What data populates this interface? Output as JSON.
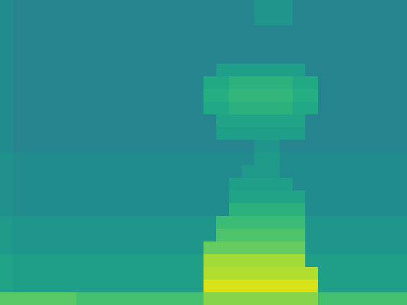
{
  "chart_data": {
    "type": "heatmap",
    "tick_labels": false,
    "color_range": [
      0,
      10
    ],
    "cells": [
      [
        4.8,
        4.5,
        4.5,
        4.5,
        4.5,
        4.5,
        4.5,
        4.5,
        4.5,
        4.5,
        4.5,
        4.5,
        4.5,
        4.5,
        4.5,
        4.5,
        4.5,
        4.5,
        4.5,
        4.5,
        5.2,
        5.2,
        5.2,
        4.5,
        4.5,
        4.5,
        4.5,
        4.5,
        4.5,
        4.5,
        4.5,
        4.5
      ],
      [
        4.8,
        4.5,
        4.5,
        4.5,
        4.5,
        4.5,
        4.5,
        4.5,
        4.5,
        4.5,
        4.5,
        4.5,
        4.5,
        4.5,
        4.5,
        4.5,
        4.5,
        4.5,
        4.5,
        4.5,
        5.2,
        5.2,
        5.2,
        4.5,
        4.5,
        4.5,
        4.5,
        4.5,
        4.5,
        4.5,
        4.5,
        4.5
      ],
      [
        4.8,
        4.5,
        4.5,
        4.5,
        4.5,
        4.5,
        4.5,
        4.5,
        4.5,
        4.5,
        4.5,
        4.5,
        4.5,
        4.5,
        4.5,
        4.5,
        4.5,
        4.5,
        4.5,
        4.5,
        4.5,
        4.5,
        4.5,
        4.5,
        4.5,
        4.5,
        4.5,
        4.5,
        4.5,
        4.5,
        4.5,
        4.5
      ],
      [
        4.8,
        4.5,
        4.5,
        4.5,
        4.5,
        4.5,
        4.5,
        4.5,
        4.5,
        4.5,
        4.5,
        4.5,
        4.5,
        4.5,
        4.5,
        4.5,
        4.5,
        4.5,
        4.5,
        4.5,
        4.5,
        4.5,
        4.5,
        4.5,
        4.5,
        4.5,
        4.5,
        4.5,
        4.5,
        4.5,
        4.5,
        4.5
      ],
      [
        4.8,
        4.5,
        4.5,
        4.5,
        4.5,
        4.5,
        4.5,
        4.5,
        4.5,
        4.5,
        4.5,
        4.5,
        4.5,
        4.5,
        4.5,
        4.5,
        4.5,
        4.5,
        4.5,
        4.5,
        4.5,
        4.5,
        4.5,
        4.5,
        4.5,
        4.5,
        4.5,
        4.5,
        4.5,
        4.5,
        4.5,
        4.5
      ],
      [
        4.8,
        4.5,
        4.5,
        4.5,
        4.5,
        4.5,
        4.5,
        4.5,
        4.5,
        4.5,
        4.5,
        4.5,
        4.5,
        4.5,
        4.5,
        4.5,
        4.5,
        5.6,
        5.6,
        5.6,
        5.6,
        5.6,
        5.6,
        5.6,
        4.5,
        4.5,
        4.5,
        4.5,
        4.5,
        4.5,
        4.5,
        4.5
      ],
      [
        4.8,
        4.5,
        4.5,
        4.5,
        4.5,
        4.5,
        4.5,
        4.5,
        4.5,
        4.5,
        4.5,
        4.5,
        4.5,
        4.5,
        4.5,
        4.5,
        6.0,
        6.0,
        6.4,
        6.4,
        6.4,
        6.4,
        6.4,
        6.0,
        6.0,
        4.5,
        4.5,
        4.5,
        4.5,
        4.5,
        4.5,
        4.5
      ],
      [
        4.8,
        4.5,
        4.5,
        4.5,
        4.5,
        4.5,
        4.5,
        4.5,
        4.5,
        4.5,
        4.5,
        4.5,
        4.5,
        4.5,
        4.5,
        4.5,
        6.2,
        6.2,
        6.6,
        6.6,
        6.6,
        6.6,
        6.6,
        6.2,
        6.2,
        4.5,
        4.5,
        4.5,
        4.5,
        4.5,
        4.5,
        4.5
      ],
      [
        4.8,
        4.5,
        4.5,
        4.5,
        4.5,
        4.5,
        4.5,
        4.5,
        4.5,
        4.5,
        4.5,
        4.5,
        4.5,
        4.5,
        4.5,
        4.5,
        6.0,
        6.0,
        6.4,
        6.4,
        6.4,
        6.4,
        6.4,
        6.0,
        6.0,
        4.5,
        4.5,
        4.5,
        4.5,
        4.5,
        4.5,
        4.5
      ],
      [
        4.8,
        4.5,
        4.5,
        4.5,
        4.5,
        4.5,
        4.5,
        4.5,
        4.5,
        4.5,
        4.5,
        4.5,
        4.5,
        4.5,
        4.5,
        4.5,
        4.5,
        5.8,
        5.8,
        5.8,
        5.8,
        5.8,
        5.8,
        5.8,
        4.5,
        4.5,
        4.5,
        4.5,
        4.5,
        4.5,
        4.5,
        4.5
      ],
      [
        4.8,
        4.5,
        4.5,
        4.5,
        4.5,
        4.5,
        4.5,
        4.5,
        4.5,
        4.5,
        4.5,
        4.5,
        4.5,
        4.5,
        4.5,
        4.5,
        4.5,
        5.6,
        5.6,
        5.6,
        5.6,
        5.6,
        5.6,
        5.6,
        4.5,
        4.5,
        4.5,
        4.5,
        4.5,
        4.5,
        4.5,
        4.5
      ],
      [
        4.8,
        4.5,
        4.5,
        4.5,
        4.5,
        4.5,
        4.5,
        4.5,
        4.5,
        4.5,
        4.5,
        4.5,
        4.5,
        4.5,
        4.5,
        4.5,
        4.5,
        4.5,
        4.5,
        4.5,
        5.2,
        5.2,
        4.5,
        4.5,
        4.5,
        4.5,
        4.5,
        4.5,
        4.5,
        4.5,
        4.5,
        4.5
      ],
      [
        5.0,
        4.8,
        4.8,
        4.8,
        4.8,
        4.8,
        4.8,
        4.8,
        4.8,
        4.8,
        4.8,
        4.8,
        4.8,
        4.8,
        4.8,
        4.8,
        4.8,
        4.8,
        4.8,
        4.8,
        5.4,
        5.4,
        4.8,
        4.8,
        4.8,
        4.8,
        4.8,
        4.8,
        4.8,
        4.8,
        4.8,
        4.8
      ],
      [
        5.0,
        4.8,
        4.8,
        4.8,
        4.8,
        4.8,
        4.8,
        4.8,
        4.8,
        4.8,
        4.8,
        4.8,
        4.8,
        4.8,
        4.8,
        4.8,
        4.8,
        4.8,
        4.8,
        5.4,
        5.4,
        5.4,
        4.8,
        4.8,
        4.8,
        4.8,
        4.8,
        4.8,
        4.8,
        4.8,
        4.8,
        4.8
      ],
      [
        5.0,
        4.8,
        4.8,
        4.8,
        4.8,
        4.8,
        4.8,
        4.8,
        4.8,
        4.8,
        4.8,
        4.8,
        4.8,
        4.8,
        4.8,
        4.8,
        4.8,
        4.8,
        5.6,
        5.6,
        5.6,
        5.6,
        5.6,
        4.8,
        4.8,
        4.8,
        4.8,
        4.8,
        4.8,
        4.8,
        4.8,
        4.8
      ],
      [
        5.0,
        4.8,
        4.8,
        4.8,
        4.8,
        4.8,
        4.8,
        4.8,
        4.8,
        4.8,
        4.8,
        4.8,
        4.8,
        4.8,
        4.8,
        4.8,
        4.8,
        4.8,
        5.8,
        5.8,
        5.8,
        5.8,
        5.8,
        5.8,
        4.8,
        4.8,
        4.8,
        4.8,
        4.8,
        4.8,
        4.8,
        4.8
      ],
      [
        5.0,
        4.8,
        4.8,
        4.8,
        4.8,
        4.8,
        4.8,
        4.8,
        4.8,
        4.8,
        4.8,
        4.8,
        4.8,
        4.8,
        4.8,
        4.8,
        4.8,
        4.8,
        6.4,
        6.4,
        6.4,
        6.4,
        6.4,
        6.4,
        4.8,
        4.8,
        4.8,
        4.8,
        4.8,
        4.8,
        4.8,
        4.8
      ],
      [
        5.4,
        5.2,
        5.2,
        5.2,
        5.2,
        5.2,
        5.2,
        5.2,
        5.2,
        5.2,
        5.2,
        5.2,
        5.2,
        5.2,
        5.2,
        5.2,
        5.2,
        6.8,
        6.8,
        6.8,
        6.8,
        6.8,
        6.8,
        6.8,
        5.2,
        5.2,
        5.2,
        5.2,
        5.2,
        5.2,
        5.2,
        5.2
      ],
      [
        5.4,
        5.2,
        5.2,
        5.2,
        5.2,
        5.2,
        5.2,
        5.2,
        5.2,
        5.2,
        5.2,
        5.2,
        5.2,
        5.2,
        5.2,
        5.2,
        5.2,
        7.2,
        7.2,
        7.2,
        7.2,
        7.2,
        7.2,
        7.2,
        5.2,
        5.2,
        5.2,
        5.2,
        5.2,
        5.2,
        5.2,
        5.2
      ],
      [
        5.4,
        5.2,
        5.2,
        5.2,
        5.2,
        5.2,
        5.2,
        5.2,
        5.2,
        5.2,
        5.2,
        5.2,
        5.2,
        5.2,
        5.2,
        5.2,
        7.6,
        7.6,
        7.6,
        7.6,
        7.6,
        7.6,
        7.6,
        7.6,
        5.2,
        5.2,
        5.2,
        5.2,
        5.2,
        5.2,
        5.2,
        5.2
      ],
      [
        5.8,
        5.6,
        5.6,
        5.6,
        5.6,
        5.6,
        5.6,
        5.6,
        5.6,
        5.6,
        5.6,
        5.6,
        5.6,
        5.6,
        5.6,
        5.6,
        8.6,
        8.6,
        8.6,
        8.6,
        8.6,
        8.6,
        8.6,
        8.6,
        5.6,
        5.6,
        5.6,
        5.6,
        5.6,
        5.6,
        5.6,
        5.6
      ],
      [
        5.8,
        5.6,
        5.6,
        5.6,
        5.6,
        5.6,
        5.6,
        5.6,
        5.6,
        5.6,
        5.6,
        5.6,
        5.6,
        5.6,
        5.6,
        5.6,
        8.8,
        8.8,
        8.8,
        8.8,
        8.8,
        8.8,
        8.8,
        8.8,
        8.8,
        5.6,
        5.6,
        5.6,
        5.6,
        5.6,
        5.6,
        5.6
      ],
      [
        5.8,
        5.6,
        5.6,
        5.6,
        5.6,
        5.6,
        5.6,
        5.6,
        5.6,
        5.6,
        5.6,
        5.6,
        5.6,
        5.6,
        5.6,
        5.6,
        9.4,
        9.4,
        9.4,
        9.4,
        9.4,
        9.4,
        9.4,
        9.4,
        9.4,
        5.6,
        5.6,
        5.6,
        5.6,
        5.6,
        5.6,
        5.6
      ],
      [
        7.4,
        7.4,
        7.4,
        7.4,
        7.4,
        7.4,
        7.0,
        7.0,
        7.0,
        7.0,
        7.0,
        7.0,
        7.0,
        7.0,
        7.0,
        7.0,
        8.2,
        8.2,
        8.2,
        8.2,
        8.2,
        8.2,
        8.2,
        8.2,
        8.2,
        7.0,
        7.0,
        7.0,
        7.0,
        7.0,
        7.0,
        7.0
      ]
    ]
  }
}
